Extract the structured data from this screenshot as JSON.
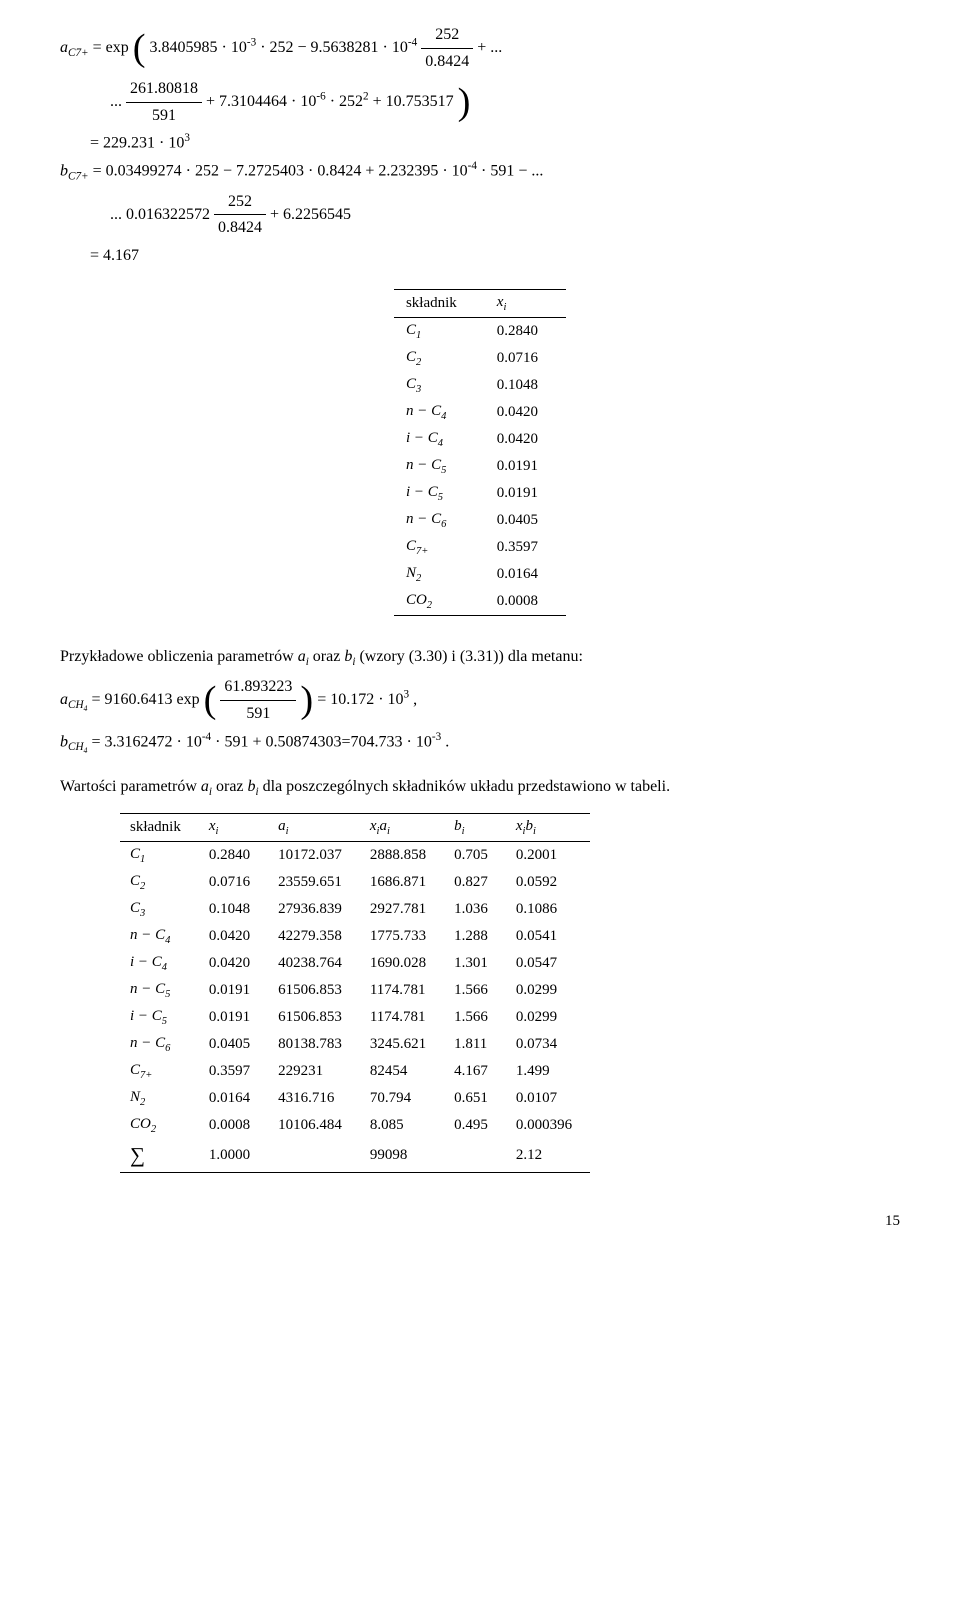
{
  "eq": {
    "a_line1_pre": "a",
    "a_line1_sub": "C7+",
    "a_line1_body_a": " = exp",
    "a_line1_inner": "3.8405985 · 10",
    "a_line1_exp1": "-3",
    "a_line1_after1": " · 252 − 9.5638281 · 10",
    "a_line1_exp2": "-4",
    "a_line1_frac_num": "252",
    "a_line1_frac_den": "0.8424",
    "a_line1_tail": " + ...",
    "a_line2_pre": "... ",
    "a_line2_frac_num": "261.80818",
    "a_line2_frac_den": "591",
    "a_line2_mid": " + 7.3104464 · 10",
    "a_line2_exp": "-6",
    "a_line2_tail": " · 252",
    "a_line2_sq": "2",
    "a_line2_end": " + 10.753517",
    "a_line3": "= 229.231 · 10",
    "a_line3_exp": "3",
    "b_line1_pre": "b",
    "b_line1_sub": "C7+",
    "b_line1_body": " = 0.03499274 · 252 − 7.2725403 · 0.8424 + 2.232395 · 10",
    "b_line1_exp": "-4",
    "b_line1_tail": " · 591 − ...",
    "b_line2_pre": "... 0.016322572 ",
    "b_line2_frac_num": "252",
    "b_line2_frac_den": "0.8424",
    "b_line2_tail": " + 6.2256545",
    "b_line3": "= 4.167"
  },
  "table1": {
    "h1": "składnik",
    "h2": "xᵢ",
    "rows": [
      {
        "c": "C",
        "s": "1",
        "v": "0.2840"
      },
      {
        "c": "C",
        "s": "2",
        "v": "0.0716"
      },
      {
        "c": "C",
        "s": "3",
        "v": "0.1048"
      },
      {
        "c": "n − C",
        "s": "4",
        "v": "0.0420"
      },
      {
        "c": "i − C",
        "s": "4",
        "v": "0.0420"
      },
      {
        "c": "n − C",
        "s": "5",
        "v": "0.0191"
      },
      {
        "c": "i − C",
        "s": "5",
        "v": "0.0191"
      },
      {
        "c": "n − C",
        "s": "6",
        "v": "0.0405"
      },
      {
        "c": "C",
        "s": "7+",
        "v": "0.3597"
      },
      {
        "c": "N",
        "s": "2",
        "v": "0.0164"
      },
      {
        "c": "CO",
        "s": "2",
        "v": "0.0008"
      }
    ]
  },
  "mid": {
    "text1": "Przykładowe obliczenia parametrów ",
    "ai": "aᵢ",
    "oraz": " oraz ",
    "bi": "bᵢ",
    "text2": " (wzory (3.30) i (3.31)) dla metanu:",
    "a_ch4_pre": "a",
    "a_ch4_sub": "CH₄",
    "a_ch4_eq": " = 9160.6413 exp",
    "a_ch4_frac_num": "61.893223",
    "a_ch4_frac_den": "591",
    "a_ch4_res": " = 10.172 · 10",
    "a_ch4_exp": "3",
    "a_ch4_comma": " ,",
    "b_ch4_pre": "b",
    "b_ch4_sub": "CH₄",
    "b_ch4_body": " = 3.3162472 · 10",
    "b_ch4_exp": "-4",
    "b_ch4_tail": " · 591 + 0.50874303=704.733 · 10",
    "b_ch4_exp2": "-3",
    "b_ch4_dot": " .",
    "text3a": "Wartości parametrów ",
    "text3b": " dla poszczególnych składników układu przedstawiono w tabeli."
  },
  "table2": {
    "h": [
      "składnik",
      "xᵢ",
      "aᵢ",
      "xᵢaᵢ",
      "bᵢ",
      "xᵢbᵢ"
    ],
    "rows": [
      {
        "c": "C",
        "s": "1",
        "x": "0.2840",
        "a": "10172.037",
        "xa": "2888.858",
        "b": "0.705",
        "xb": "0.2001"
      },
      {
        "c": "C",
        "s": "2",
        "x": "0.0716",
        "a": "23559.651",
        "xa": "1686.871",
        "b": "0.827",
        "xb": "0.0592"
      },
      {
        "c": "C",
        "s": "3",
        "x": "0.1048",
        "a": "27936.839",
        "xa": "2927.781",
        "b": "1.036",
        "xb": "0.1086"
      },
      {
        "c": "n − C",
        "s": "4",
        "x": "0.0420",
        "a": "42279.358",
        "xa": "1775.733",
        "b": "1.288",
        "xb": "0.0541"
      },
      {
        "c": "i − C",
        "s": "4",
        "x": "0.0420",
        "a": "40238.764",
        "xa": "1690.028",
        "b": "1.301",
        "xb": "0.0547"
      },
      {
        "c": "n − C",
        "s": "5",
        "x": "0.0191",
        "a": "61506.853",
        "xa": "1174.781",
        "b": "1.566",
        "xb": "0.0299"
      },
      {
        "c": "i − C",
        "s": "5",
        "x": "0.0191",
        "a": "61506.853",
        "xa": "1174.781",
        "b": "1.566",
        "xb": "0.0299"
      },
      {
        "c": "n − C",
        "s": "6",
        "x": "0.0405",
        "a": "80138.783",
        "xa": "3245.621",
        "b": "1.811",
        "xb": "0.0734"
      },
      {
        "c": "C",
        "s": "7+",
        "x": "0.3597",
        "a": "229231",
        "xa": "82454",
        "b": "4.167",
        "xb": "1.499"
      },
      {
        "c": "N",
        "s": "2",
        "x": "0.0164",
        "a": "4316.716",
        "xa": "70.794",
        "b": "0.651",
        "xb": "0.0107"
      },
      {
        "c": "CO",
        "s": "2",
        "x": "0.0008",
        "a": "10106.484",
        "xa": "8.085",
        "b": "0.495",
        "xb": "0.000396"
      }
    ],
    "sum": {
      "label": "∑",
      "x": "1.0000",
      "a": "",
      "xa": "99098",
      "b": "",
      "xb": "2.12"
    }
  },
  "pagenum": "15"
}
